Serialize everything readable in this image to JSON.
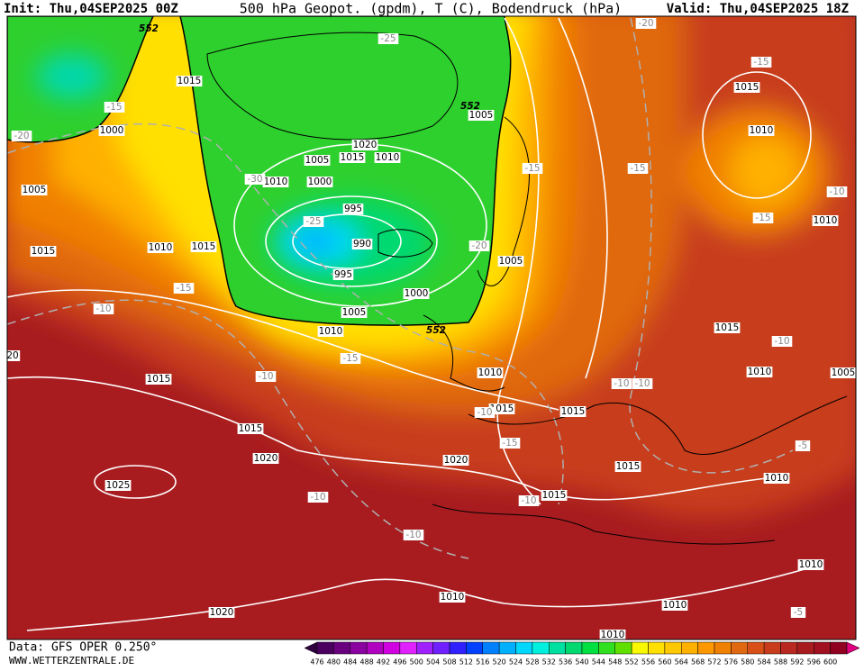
{
  "header": {
    "init": "Init: Thu,04SEP2025 00Z",
    "title": "500 hPa Geopot. (gpdm), T (C), Bodendruck (hPa)",
    "valid": "Valid: Thu,04SEP2025 18Z"
  },
  "footer": {
    "data_source": "Data: GFS OPER 0.250°",
    "website": "WWW.WETTERZENTRALE.DE"
  },
  "colorbar": {
    "labels": [
      "476",
      "480",
      "484",
      "488",
      "492",
      "496",
      "500",
      "504",
      "508",
      "512",
      "516",
      "520",
      "524",
      "528",
      "532",
      "536",
      "540",
      "544",
      "548",
      "552",
      "556",
      "560",
      "564",
      "568",
      "572",
      "576",
      "580",
      "584",
      "588",
      "592",
      "596",
      "600"
    ]
  },
  "map": {
    "pressure_labels": [
      "1015",
      "1000",
      "1005",
      "1015",
      "1010",
      "1015",
      "1010",
      "1000",
      "1005",
      "1015",
      "1020",
      "1010",
      "995",
      "990",
      "995",
      "1000",
      "1005",
      "1010",
      "1015",
      "1015",
      "1020",
      "1025",
      "1020",
      "1010",
      "1015",
      "1015",
      "1015",
      "1015",
      "1005",
      "1005",
      "1015",
      "1010",
      "1010",
      "1015",
      "1010",
      "1005",
      "1010",
      "1010",
      "1010",
      "1010",
      "1020",
      "1010",
      "20"
    ],
    "temperature_labels": [
      "-15",
      "-20",
      "-25",
      "-30",
      "-25",
      "-20",
      "-15",
      "-15",
      "-20",
      "-15",
      "-10",
      "-15",
      "-15",
      "-10",
      "-10",
      "-15",
      "-10",
      "-10",
      "-10",
      "-5",
      "-15",
      "-10",
      "-10",
      "-10",
      "-5",
      "-10"
    ],
    "geopotential_labels": [
      "552",
      "552",
      "552"
    ]
  }
}
